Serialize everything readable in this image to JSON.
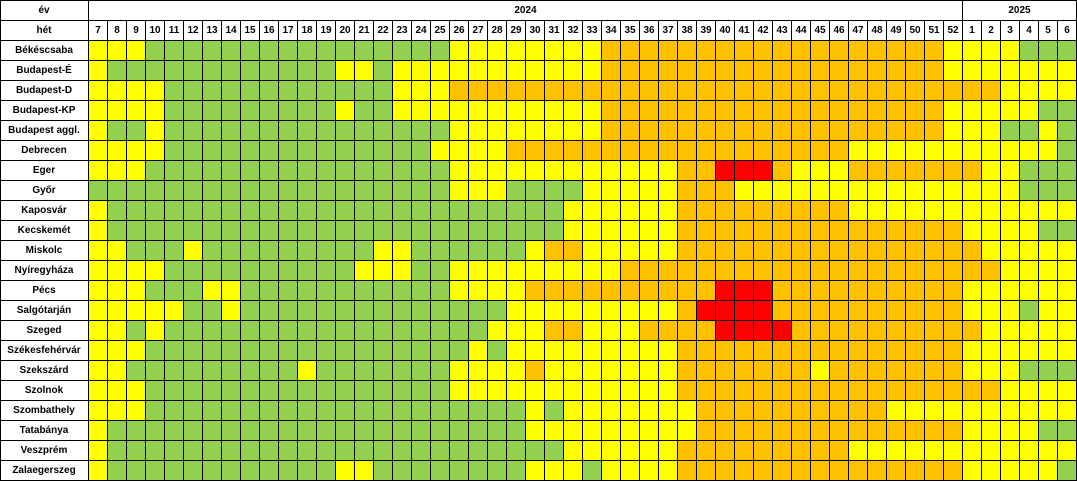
{
  "table": {
    "year_label": "év",
    "week_label": "hét",
    "years": [
      "2024",
      "2025"
    ],
    "weeks_2024": [
      7,
      8,
      9,
      10,
      11,
      12,
      13,
      14,
      15,
      16,
      17,
      18,
      19,
      20,
      21,
      22,
      23,
      24,
      25,
      26,
      27,
      28,
      29,
      30,
      31,
      32,
      33,
      34,
      35,
      36,
      37,
      38,
      39,
      40,
      41,
      42,
      43,
      44,
      45,
      46,
      47,
      48,
      49,
      50,
      51,
      52
    ],
    "weeks_2025": [
      1,
      2,
      3,
      4,
      5,
      6
    ],
    "palette": {
      "G": "#92d050",
      "Y": "#ffff00",
      "O": "#ffc000",
      "R": "#ff0000"
    },
    "rows": [
      {
        "name": "Békéscsaba",
        "cells": "YYYGGGGGGGGGGGGGGGGYYYYYYYYOOOOOOOOOOOOOOOOOOYYYYGGG"
      },
      {
        "name": "Budapest-É",
        "cells": "YGGGGGGGGGGGGYYGYYYYYYYYYYYOOOOOOOOOOOOOOOOOOYYYYYYY"
      },
      {
        "name": "Budapest-D",
        "cells": "YYYYGGGGGGGGGGGGYYYOOOOOOOOOOOOOOOOOOOOOOOOOOOOOYYYY"
      },
      {
        "name": "Budapest-KP",
        "cells": "YYYYGGGGGGGGGYGGYYYYYYYYYYYOOOOOOOOOOOOOOOOOOYYYYYGG"
      },
      {
        "name": "Budapest aggl.",
        "cells": "YGGYGGGGGGGGGGGGGGGYYYYYYYYOOOOOOOOOOOOOOOOOOYYYGGYG"
      },
      {
        "name": "Debrecen",
        "cells": "YYYYGGGGGGGGGGGGGGYYYYOOOOOOOOOOOOOOOOOOYYYYYYYYYYYG"
      },
      {
        "name": "Eger",
        "cells": "YYYGGGGGGGGGGGGGGGGYYYYYYYYYYYYOORRROYYYOOOOOOOYYGGG"
      },
      {
        "name": "Győr",
        "cells": "GGGGGGGGGGGGGGGGGGGYYYGGGGYYYYYOOOYYYYYYYYYYYYYYYGGG"
      },
      {
        "name": "Kaposvár",
        "cells": "YGGGGGGGGGGGGGGGGGGGGGGGGYYYYYYOOOOOOOOOYYYYYYYYYYYY"
      },
      {
        "name": "Kecskemét",
        "cells": "YGGGGGGGGGGGGGGGGGGGGGGGGYYYYYYOOOOOOOOOOOOOOOYYYYGG"
      },
      {
        "name": "Miskolc",
        "cells": "YYGGGYGGGGGGGGGYYGGGGGGYOOYYYYYOOOOOOOOOOOOOOOOYYYYY"
      },
      {
        "name": "Nyíregyháza",
        "cells": "YYYYGGGGGGGGGGYYYGGYYYYYYYYYOOOOOOOOOOOOOOOOOOOOYYYY"
      },
      {
        "name": "Pécs",
        "cells": "YYYGGGYYGGGGGGGGGGGYYYYOOOOOOOOOORRROOOOOOOOOOYYYYYY"
      },
      {
        "name": "Salgótarján",
        "cells": "YYYYYGGYGGGGGGGGGGGGGGYYYYYYYYYORRRROOOOOOOOOOYYYGYY"
      },
      {
        "name": "Szeged",
        "cells": "YYGYGGGGGGGGGGGGGGGGGYYYOOYYYOOOORRRROOOOOOOOOOYYYYY"
      },
      {
        "name": "Székesfehérvár",
        "cells": "YYYGGGGGGGGGGGGGGGGGYGYYYYYYYYYOOOOOOOOOOOOOOOYYYYYY"
      },
      {
        "name": "Szekszárd",
        "cells": "YYGGGGGGGGGYGGGGGGGYYYYOYYYYYYYOOOOOOOYOOOOOOOYYYGGG"
      },
      {
        "name": "Szolnok",
        "cells": "YYYGGGGGGGGGGGGGGGGYYYYYYYYYYYYOOOOOOOOOOOOOOOOOYYYY"
      },
      {
        "name": "Szombathely",
        "cells": "YYYGGGGGGGGGGGGGGGGGGGGYGYYYYYYYOOOOOOOOOOYYYYYYYYYY"
      },
      {
        "name": "Tatabánya",
        "cells": "YGGGGGGGGGGGGGGGGGGGGGGYYYYYYYYYOOOOOOOOOOOOOOYYYYGG"
      },
      {
        "name": "Veszprém",
        "cells": "YGGGGGGGGGGGGGGGGGGGGGGGGYYYYYYOOOOOOOOOYYYYYYYYYYYY"
      },
      {
        "name": "Zalaegerszeg",
        "cells": "YGGGGGGGGGGGGYYGGGGGGGGYYYGYYYYOOOOOOOOOOOOOOOYYYYYG"
      }
    ]
  }
}
